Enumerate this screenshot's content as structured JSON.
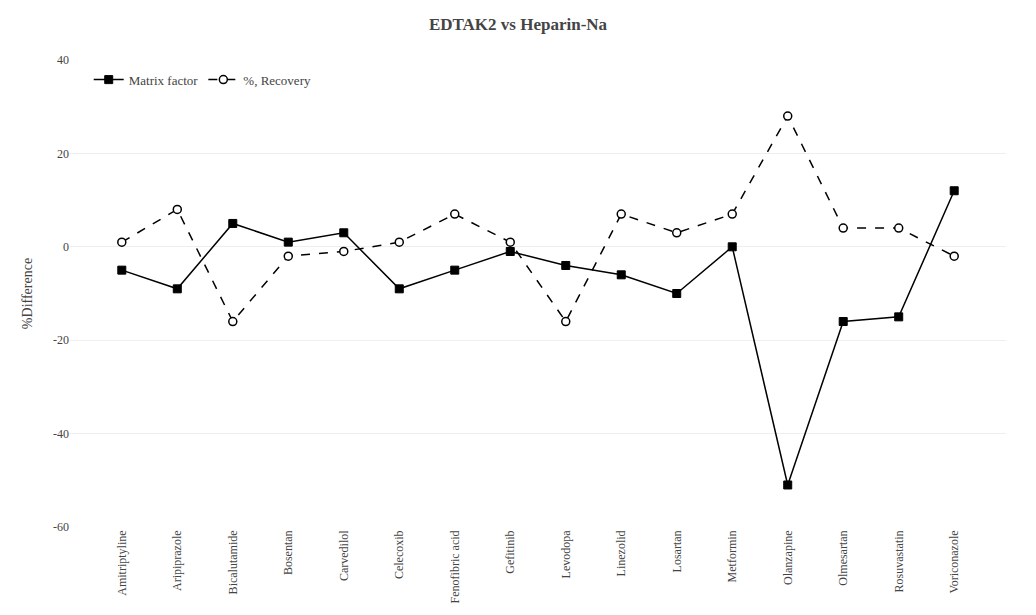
{
  "chart_data": {
    "type": "line",
    "title": "EDTAK2 vs Heparin-Na",
    "ylabel": "%Difference",
    "categories": [
      "Amitriptyline",
      "Aripiprazole",
      "Bicalutamide",
      "Bosentan",
      "Carvedilol",
      "Celecoxib",
      "Fenofibric acid",
      "Gefitinib",
      "Levodopa",
      "Linezolid",
      "Losartan",
      "Metformin",
      "Olanzapine",
      "Olmesartan",
      "Rosuvastatin",
      "Voriconazole"
    ],
    "series": [
      {
        "name": "Matrix factor",
        "color": "#000000",
        "marker": "square",
        "line_style": "solid",
        "values": [
          -5,
          -9,
          5,
          1,
          3,
          -9,
          -5,
          -1,
          -4,
          -6,
          -10,
          0,
          -51,
          -16,
          -15,
          12
        ]
      },
      {
        "name": "%, Recovery",
        "color": "#000000",
        "marker": "open_circle",
        "line_style": "dashed",
        "values": [
          1,
          8,
          -16,
          -2,
          -1,
          1,
          7,
          1,
          -16,
          7,
          3,
          7,
          28,
          4,
          4,
          -2
        ]
      }
    ],
    "ylim": [
      -60,
      40
    ],
    "yticks": [
      -60,
      -40,
      -20,
      0,
      20,
      40
    ],
    "grid": true,
    "legend": "upper left"
  }
}
